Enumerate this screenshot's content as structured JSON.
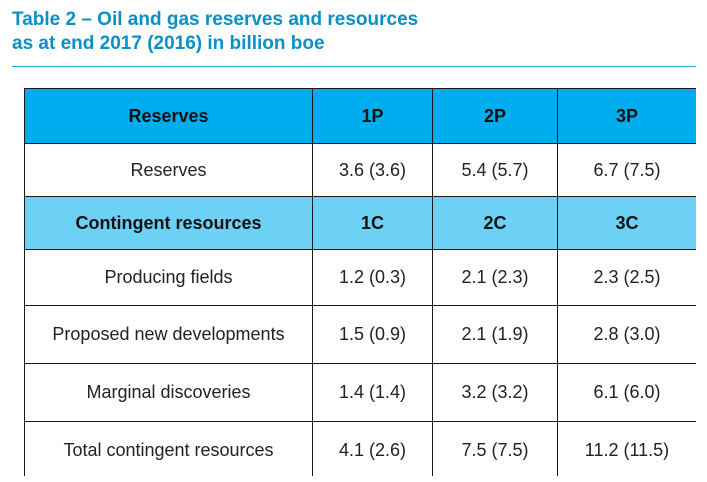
{
  "title": {
    "line1": "Table 2 – Oil and gas reserves and resources",
    "line2": "as at end 2017 (2016) in billion boe"
  },
  "table": {
    "reserves_header": [
      "Reserves",
      "1P",
      "2P",
      "3P"
    ],
    "reserves_rows": [
      [
        "Reserves",
        "3.6 (3.6)",
        "5.4 (5.7)",
        "6.7 (7.5)"
      ]
    ],
    "contingent_header": [
      "Contingent resources",
      "1C",
      "2C",
      "3C"
    ],
    "contingent_rows": [
      [
        "Producing fields",
        "1.2 (0.3)",
        "2.1 (2.3)",
        "2.3 (2.5)"
      ],
      [
        "Proposed new developments",
        "1.5 (0.9)",
        "2.1 (1.9)",
        "2.8 (3.0)"
      ],
      [
        "Marginal discoveries",
        "1.4 (1.4)",
        "3.2 (3.2)",
        "6.1 (6.0)"
      ],
      [
        "Total contingent resources",
        "4.1 (2.6)",
        "7.5 (7.5)",
        "11.2 (11.5)"
      ]
    ]
  },
  "colors": {
    "title": "#0a8fc7",
    "header_bg": "#00aeef",
    "subheader_bg": "#6dd0f5",
    "grid": "#1a1a1a"
  }
}
